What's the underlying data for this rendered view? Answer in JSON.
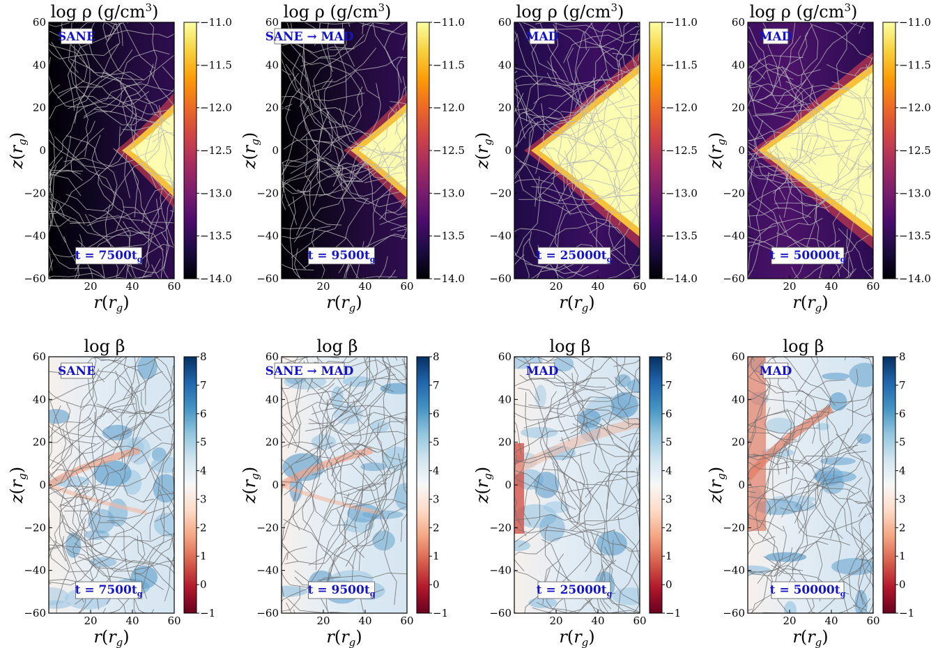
{
  "figure": {
    "rows": [
      {
        "quantity": "density",
        "title_main": "log ρ (g/cm",
        "title_sup": "3",
        "title_tail": ")",
        "colormap": "inferno",
        "colorbar_ticks": [
          "−11.0",
          "−11.5",
          "−12.0",
          "−12.5",
          "−13.0",
          "−13.5",
          "−14.0"
        ]
      },
      {
        "quantity": "beta",
        "title_main": "log β",
        "title_sup": "",
        "title_tail": "",
        "colormap": "RdBu",
        "colorbar_ticks": [
          "8",
          "7",
          "6",
          "5",
          "4",
          "3",
          "2",
          "1",
          "0",
          "−1"
        ]
      }
    ],
    "columns": [
      {
        "state_label": "SANE",
        "time_label": "t = 7500t",
        "time_sub": "g"
      },
      {
        "state_label": "SANE → MAD",
        "time_label": "t = 9500t",
        "time_sub": "g"
      },
      {
        "state_label": "MAD",
        "time_label": "t = 25000t",
        "time_sub": "g"
      },
      {
        "state_label": "MAD",
        "time_label": "t = 50000t",
        "time_sub": "g"
      }
    ],
    "x_axis": {
      "label_var": "r",
      "label_sub": "g",
      "ticks": [
        "20",
        "40",
        "60"
      ]
    },
    "y_axis": {
      "label_var": "z",
      "label_sub": "g",
      "ticks": [
        "60",
        "40",
        "20",
        "0",
        "−20",
        "−40",
        "−60"
      ]
    },
    "label_color": "#1414c8"
  },
  "chart_data": [
    {
      "type": "heatmap",
      "panel": "row1-col1",
      "quantity": "log rho (g/cm^3)",
      "state": "SANE",
      "time": "t = 7500 tg",
      "xlim": [
        0,
        60
      ],
      "ylim": [
        -60,
        60
      ],
      "clim": [
        -14.0,
        -11.0
      ],
      "colormap": "inferno",
      "disk_wedge_start_r": 35,
      "streamlines": true
    },
    {
      "type": "heatmap",
      "panel": "row1-col2",
      "quantity": "log rho (g/cm^3)",
      "state": "SANE → MAD",
      "time": "t = 9500 tg",
      "xlim": [
        0,
        60
      ],
      "ylim": [
        -60,
        60
      ],
      "clim": [
        -14.0,
        -11.0
      ],
      "colormap": "inferno",
      "disk_wedge_start_r": 33,
      "streamlines": true
    },
    {
      "type": "heatmap",
      "panel": "row1-col3",
      "quantity": "log rho (g/cm^3)",
      "state": "MAD",
      "time": "t = 25000 tg",
      "xlim": [
        0,
        60
      ],
      "ylim": [
        -60,
        60
      ],
      "clim": [
        -14.0,
        -11.0
      ],
      "colormap": "inferno",
      "disk_wedge_start_r": 8,
      "streamlines": true
    },
    {
      "type": "heatmap",
      "panel": "row1-col4",
      "quantity": "log rho (g/cm^3)",
      "state": "MAD",
      "time": "t = 50000 tg",
      "xlim": [
        0,
        60
      ],
      "ylim": [
        -60,
        60
      ],
      "clim": [
        -14.0,
        -11.0
      ],
      "colormap": "inferno",
      "disk_wedge_start_r": 5,
      "streamlines": true
    },
    {
      "type": "heatmap",
      "panel": "row2-col1",
      "quantity": "log beta",
      "state": "SANE",
      "time": "t = 7500 tg",
      "xlim": [
        0,
        60
      ],
      "ylim": [
        -60,
        60
      ],
      "clim": [
        -1,
        8
      ],
      "colormap": "RdBu",
      "streamlines": true
    },
    {
      "type": "heatmap",
      "panel": "row2-col2",
      "quantity": "log beta",
      "state": "SANE → MAD",
      "time": "t = 9500 tg",
      "xlim": [
        0,
        60
      ],
      "ylim": [
        -60,
        60
      ],
      "clim": [
        -1,
        8
      ],
      "colormap": "RdBu",
      "streamlines": true
    },
    {
      "type": "heatmap",
      "panel": "row2-col3",
      "quantity": "log beta",
      "state": "MAD",
      "time": "t = 25000 tg",
      "xlim": [
        0,
        60
      ],
      "ylim": [
        -60,
        60
      ],
      "clim": [
        -1,
        8
      ],
      "colormap": "RdBu",
      "streamlines": true
    },
    {
      "type": "heatmap",
      "panel": "row2-col4",
      "quantity": "log beta",
      "state": "MAD",
      "time": "t = 50000 tg",
      "xlim": [
        0,
        60
      ],
      "ylim": [
        -60,
        60
      ],
      "clim": [
        -1,
        8
      ],
      "colormap": "RdBu",
      "streamlines": true
    }
  ]
}
